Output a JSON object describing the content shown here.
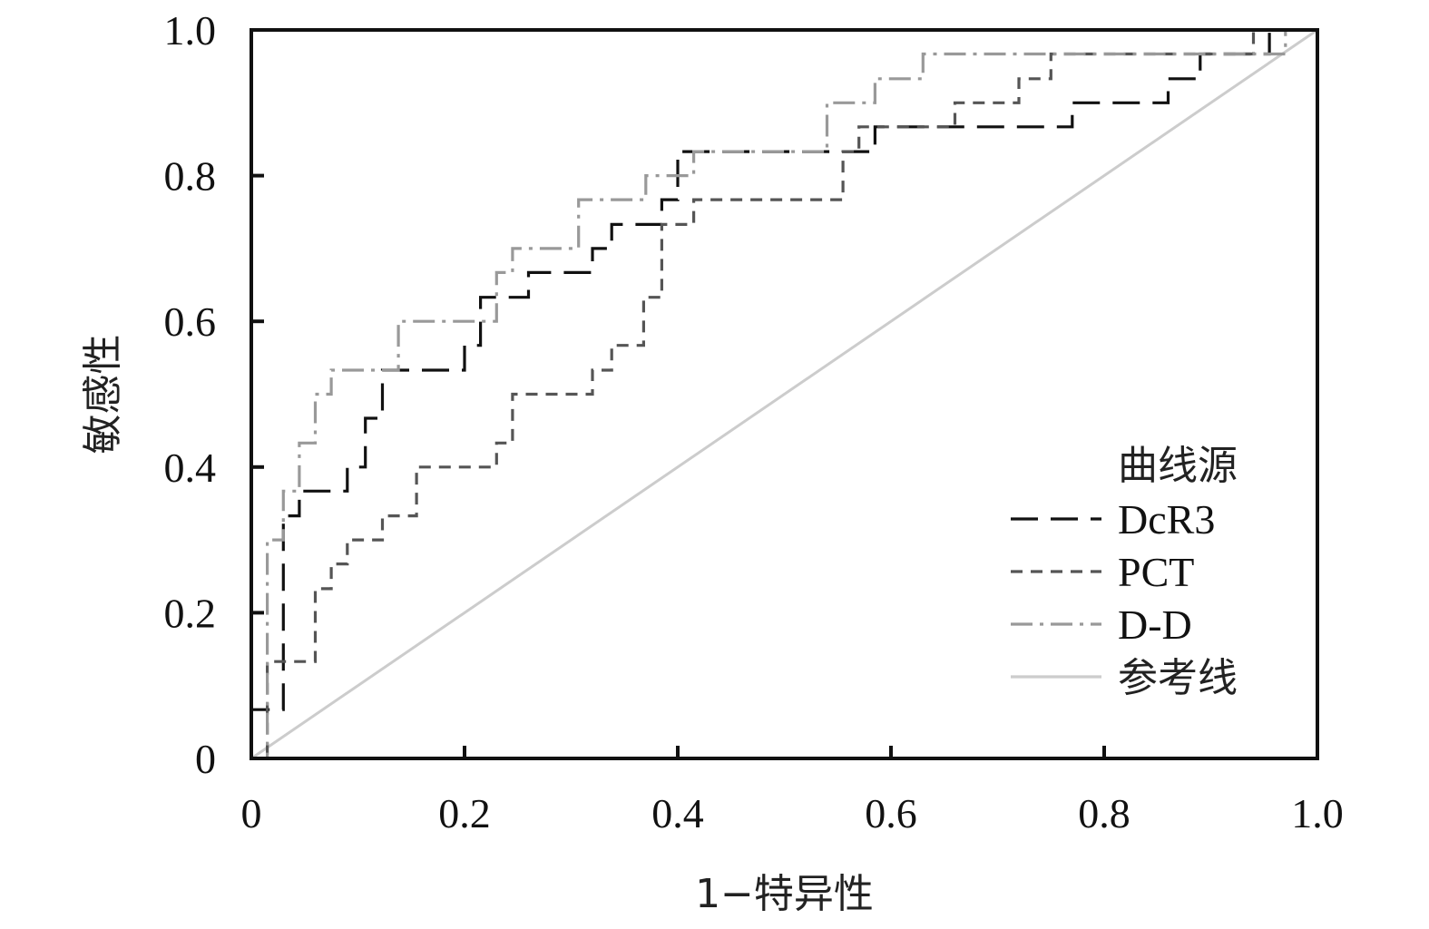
{
  "chart_data": {
    "type": "line",
    "xlabel": "1−特异性",
    "ylabel": "敏感性",
    "xlim": [
      0,
      1
    ],
    "ylim": [
      0,
      1
    ],
    "x_ticks": [
      "0",
      "0.2",
      "0.4",
      "0.6",
      "0.8",
      "1.0"
    ],
    "y_ticks": [
      "0",
      "0.2",
      "0.4",
      "0.6",
      "0.8",
      "1.0"
    ],
    "grid": false,
    "legend": {
      "title": "曲线源",
      "position": "bottom-right"
    },
    "series": [
      {
        "name": "DcR3",
        "color": "#111111",
        "dash": "long-dash",
        "points": [
          [
            0,
            0
          ],
          [
            0,
            0.067
          ],
          [
            0.03,
            0.067
          ],
          [
            0.03,
            0.333
          ],
          [
            0.045,
            0.333
          ],
          [
            0.045,
            0.367
          ],
          [
            0.09,
            0.367
          ],
          [
            0.09,
            0.4
          ],
          [
            0.107,
            0.4
          ],
          [
            0.107,
            0.467
          ],
          [
            0.123,
            0.467
          ],
          [
            0.123,
            0.533
          ],
          [
            0.2,
            0.533
          ],
          [
            0.2,
            0.567
          ],
          [
            0.215,
            0.567
          ],
          [
            0.215,
            0.633
          ],
          [
            0.26,
            0.633
          ],
          [
            0.26,
            0.667
          ],
          [
            0.32,
            0.667
          ],
          [
            0.32,
            0.7
          ],
          [
            0.338,
            0.7
          ],
          [
            0.338,
            0.733
          ],
          [
            0.385,
            0.733
          ],
          [
            0.385,
            0.767
          ],
          [
            0.4,
            0.767
          ],
          [
            0.4,
            0.833
          ],
          [
            0.585,
            0.833
          ],
          [
            0.585,
            0.867
          ],
          [
            0.77,
            0.867
          ],
          [
            0.77,
            0.9
          ],
          [
            0.86,
            0.9
          ],
          [
            0.86,
            0.933
          ],
          [
            0.89,
            0.933
          ],
          [
            0.89,
            0.967
          ],
          [
            0.955,
            0.967
          ],
          [
            0.955,
            1
          ],
          [
            1,
            1
          ]
        ]
      },
      {
        "name": "PCT",
        "color": "#555555",
        "dash": "short-dash",
        "points": [
          [
            0,
            0
          ],
          [
            0.015,
            0
          ],
          [
            0.015,
            0.133
          ],
          [
            0.06,
            0.133
          ],
          [
            0.06,
            0.233
          ],
          [
            0.075,
            0.233
          ],
          [
            0.075,
            0.267
          ],
          [
            0.09,
            0.267
          ],
          [
            0.09,
            0.3
          ],
          [
            0.123,
            0.3
          ],
          [
            0.123,
            0.333
          ],
          [
            0.155,
            0.333
          ],
          [
            0.155,
            0.4
          ],
          [
            0.23,
            0.4
          ],
          [
            0.23,
            0.433
          ],
          [
            0.245,
            0.433
          ],
          [
            0.245,
            0.5
          ],
          [
            0.32,
            0.5
          ],
          [
            0.32,
            0.533
          ],
          [
            0.338,
            0.533
          ],
          [
            0.338,
            0.567
          ],
          [
            0.368,
            0.567
          ],
          [
            0.368,
            0.633
          ],
          [
            0.385,
            0.633
          ],
          [
            0.385,
            0.733
          ],
          [
            0.415,
            0.733
          ],
          [
            0.415,
            0.767
          ],
          [
            0.555,
            0.767
          ],
          [
            0.555,
            0.833
          ],
          [
            0.57,
            0.833
          ],
          [
            0.57,
            0.867
          ],
          [
            0.66,
            0.867
          ],
          [
            0.66,
            0.9
          ],
          [
            0.72,
            0.9
          ],
          [
            0.72,
            0.933
          ],
          [
            0.75,
            0.933
          ],
          [
            0.75,
            0.967
          ],
          [
            0.94,
            0.967
          ],
          [
            0.94,
            1
          ],
          [
            1,
            1
          ]
        ]
      },
      {
        "name": "D-D",
        "color": "#999999",
        "dash": "dash-dot",
        "points": [
          [
            0,
            0
          ],
          [
            0.015,
            0
          ],
          [
            0.015,
            0.3
          ],
          [
            0.03,
            0.3
          ],
          [
            0.03,
            0.367
          ],
          [
            0.045,
            0.367
          ],
          [
            0.045,
            0.433
          ],
          [
            0.06,
            0.433
          ],
          [
            0.06,
            0.5
          ],
          [
            0.075,
            0.5
          ],
          [
            0.075,
            0.533
          ],
          [
            0.138,
            0.533
          ],
          [
            0.138,
            0.6
          ],
          [
            0.23,
            0.6
          ],
          [
            0.23,
            0.667
          ],
          [
            0.245,
            0.667
          ],
          [
            0.245,
            0.7
          ],
          [
            0.307,
            0.7
          ],
          [
            0.307,
            0.767
          ],
          [
            0.37,
            0.767
          ],
          [
            0.37,
            0.8
          ],
          [
            0.415,
            0.8
          ],
          [
            0.415,
            0.833
          ],
          [
            0.54,
            0.833
          ],
          [
            0.54,
            0.9
          ],
          [
            0.585,
            0.9
          ],
          [
            0.585,
            0.933
          ],
          [
            0.63,
            0.933
          ],
          [
            0.63,
            0.967
          ],
          [
            0.97,
            0.967
          ],
          [
            0.97,
            1
          ],
          [
            1,
            1
          ]
        ]
      },
      {
        "name": "参考线",
        "color": "#cccccc",
        "dash": "solid",
        "points": [
          [
            0,
            0
          ],
          [
            1,
            1
          ]
        ]
      }
    ]
  }
}
